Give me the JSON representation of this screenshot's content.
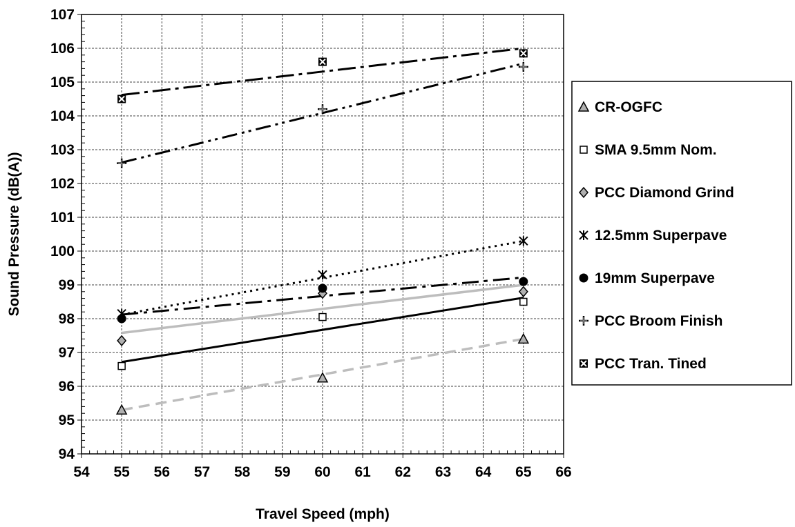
{
  "chart_data": {
    "type": "scatter",
    "xlabel": "Travel Speed (mph)",
    "ylabel": "Sound Pressure (dB(A))",
    "xlim": [
      54,
      66
    ],
    "ylim": [
      94,
      107
    ],
    "x_ticks": [
      "54",
      "55",
      "56",
      "57",
      "58",
      "59",
      "60",
      "61",
      "62",
      "63",
      "64",
      "65",
      "66"
    ],
    "y_ticks": [
      "94",
      "95",
      "96",
      "97",
      "98",
      "99",
      "100",
      "101",
      "102",
      "103",
      "104",
      "105",
      "106",
      "107"
    ],
    "grid": "dashed",
    "legend_position": "right",
    "x": [
      55,
      60,
      65
    ],
    "series": [
      {
        "name": "CR-OGFC",
        "marker": "triangle",
        "marker_fill": "#b0b0b0",
        "line_color": "#bdbdbd",
        "line_style": "dashed",
        "values": [
          95.3,
          96.25,
          97.4
        ],
        "trend": [
          95.3,
          97.4
        ]
      },
      {
        "name": "SMA 9.5mm Nom.",
        "marker": "square",
        "marker_fill": "#ffffff",
        "line_color": "#000000",
        "line_style": "solid",
        "values": [
          96.6,
          98.05,
          98.5
        ],
        "trend": [
          96.72,
          98.62
        ]
      },
      {
        "name": "PCC Diamond Grind",
        "marker": "diamond",
        "marker_fill": "#b0b0b0",
        "line_color": "#bdbdbd",
        "line_style": "solid",
        "values": [
          97.35,
          98.75,
          98.8
        ],
        "trend": [
          97.58,
          99.0
        ]
      },
      {
        "name": "12.5mm Superpave",
        "marker": "star",
        "marker_fill": "#000000",
        "line_color": "#000000",
        "line_style": "dotted",
        "values": [
          98.15,
          99.3,
          100.3
        ],
        "trend": [
          98.12,
          100.3
        ]
      },
      {
        "name": "19mm Superpave",
        "marker": "circle",
        "marker_fill": "#000000",
        "line_color": "#000000",
        "line_style": "longdash",
        "values": [
          98.0,
          98.9,
          99.1
        ],
        "trend": [
          98.12,
          99.22
        ]
      },
      {
        "name": "PCC Broom Finish",
        "marker": "plus",
        "marker_fill": "#b0b0b0",
        "line_color": "#000000",
        "line_style": "dashdotdot",
        "values": [
          102.6,
          104.2,
          105.45
        ],
        "trend": [
          102.62,
          105.55
        ]
      },
      {
        "name": "PCC Tran. Tined",
        "marker": "cross-square",
        "marker_fill": "#ffffff",
        "line_color": "#000000",
        "line_style": "dashdot",
        "values": [
          104.5,
          105.6,
          105.85
        ],
        "trend": [
          104.62,
          106.0
        ]
      }
    ]
  }
}
